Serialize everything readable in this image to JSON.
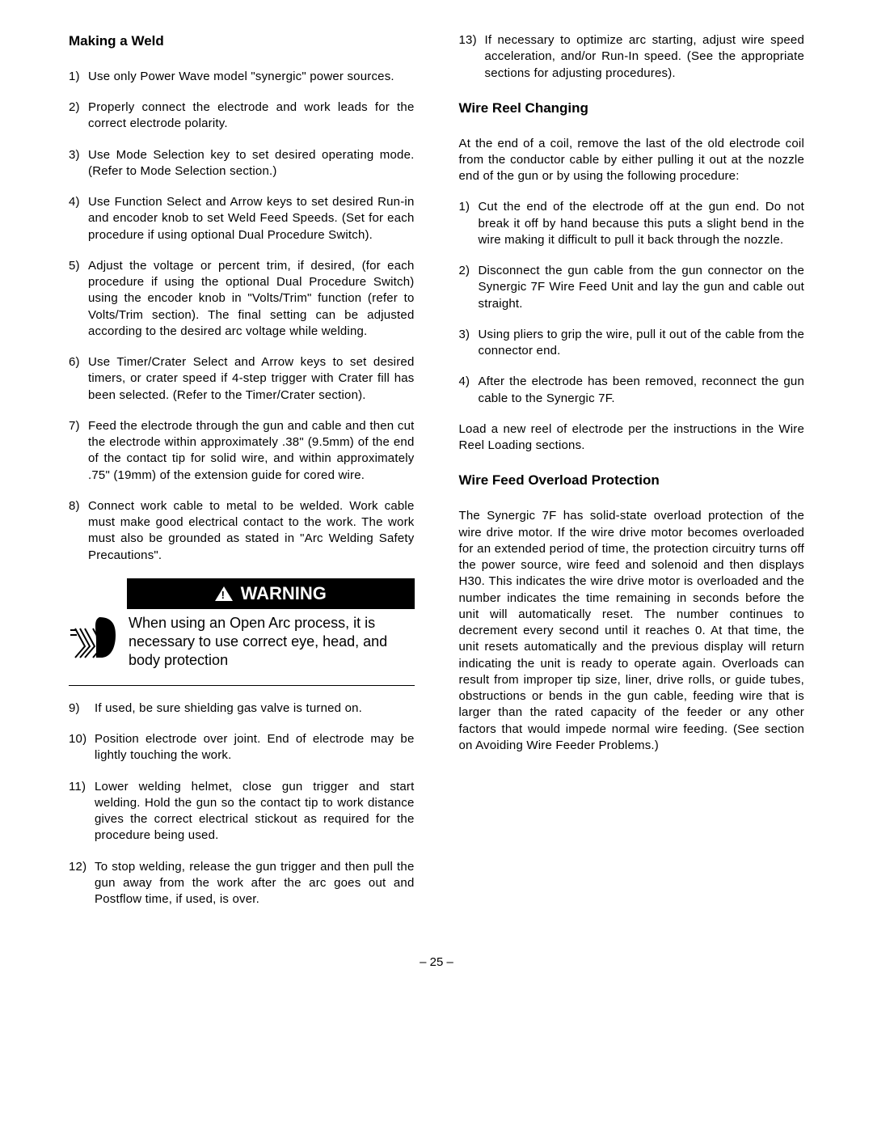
{
  "left": {
    "heading1": "Making a Weld",
    "list1": [
      "Use only Power Wave model \"synergic\" power sources.",
      "Properly connect the electrode and work leads for the correct electrode polarity.",
      "Use Mode Selection key to set desired operating mode.  (Refer to Mode Selection section.)",
      "Use Function Select and Arrow keys to set desired Run-in and encoder knob to set Weld Feed Speeds. (Set for each procedure if using optional Dual Procedure Switch).",
      "Adjust the voltage or percent trim, if desired, (for each procedure if using the optional Dual Procedure Switch)  using the encoder knob in \"Volts/Trim\" function (refer to Volts/Trim section). The final setting can be adjusted according to the desired arc voltage while welding.",
      "Use Timer/Crater Select and Arrow keys to set desired timers, or crater speed if 4-step trigger with Crater fill has been selected.  (Refer to the Timer/Crater section).",
      "Feed the electrode through the gun and cable and then cut the electrode within approximately .38\" (9.5mm) of the end of the contact tip for solid wire, and within approximately .75\" (19mm) of the extension guide for cored wire.",
      "Connect work cable to metal to be welded.  Work cable must make good electrical contact to the work.  The work must also be grounded as stated in \"Arc Welding Safety Precautions\"."
    ],
    "warning_label": "WARNING",
    "warning_text": "When using an Open Arc process, it is necessary to use correct eye, head, and body protection",
    "list2_start": 9,
    "list2": [
      "If used, be sure shielding gas valve is turned on.",
      "Position electrode over joint.  End of electrode may be lightly touching the work.",
      "Lower welding helmet, close gun trigger and start welding.  Hold the gun so the contact tip to work distance gives the correct electrical stickout as required for the procedure being used.",
      "To stop welding, release the gun trigger and then pull the gun away from the work after the arc goes out and Postflow time, if used, is over."
    ]
  },
  "right": {
    "list1_start": 13,
    "list1": [
      "If necessary to optimize arc starting, adjust wire speed acceleration, and/or Run-In speed. (See the appropriate sections for adjusting procedures)."
    ],
    "heading2": "Wire Reel Changing",
    "intro2": "At the end of a coil, remove the last of the old electrode coil from the conductor cable by either pulling it out at the nozzle end of the gun or by using the following procedure:",
    "list2": [
      "Cut the end of the electrode off at the gun end.  Do not break it off by hand because this puts a slight bend in the wire making it difficult to pull it back through the nozzle.",
      "Disconnect the gun cable from the gun connector on the Synergic 7F Wire Feed Unit and lay the gun and cable out straight.",
      "Using pliers to grip the wire, pull it out of the cable from the connector end.",
      "After the electrode has been removed, reconnect the gun cable to the Synergic 7F."
    ],
    "outro2": "Load a new reel of electrode per the instructions in the Wire Reel Loading sections.",
    "heading3": "Wire Feed Overload Protection",
    "para3": "The Synergic 7F has solid-state overload protection of the wire drive motor.  If the wire drive motor becomes overloaded for an extended period of time, the protection circuitry turns off the power source, wire feed and solenoid and then displays H30.  This indicates the wire drive motor is overloaded and the number indicates the time remaining in seconds before the unit will automatically reset.  The number continues to decrement every second until it reaches 0.  At that time, the unit resets automatically and the previous display will return indicating the unit is ready to operate again. Overloads can result from improper tip size, liner, drive rolls, or guide tubes, obstructions or bends in the gun cable, feeding wire that is larger than the rated capacity of the feeder or any other factors that would impede normal wire feeding.  (See section on Avoiding Wire Feeder Problems.)"
  },
  "page_number": "– 25 –"
}
